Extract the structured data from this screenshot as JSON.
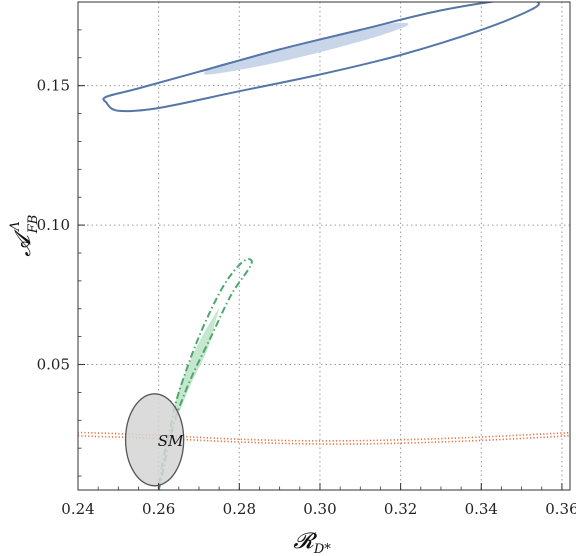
{
  "chart_data": {
    "type": "scatter",
    "xlabel": "𝓡",
    "xlabel_sub": "D*",
    "ylabel": "𝓐",
    "ylabel_sub": "FB",
    "ylabel_sup": "Λ",
    "xlim": [
      0.24,
      0.362
    ],
    "ylim": [
      0.005,
      0.18
    ],
    "x_ticks": [
      0.24,
      0.26,
      0.28,
      0.3,
      0.32,
      0.34,
      0.36
    ],
    "x_tick_labels": [
      "0.24",
      "0.26",
      "0.28",
      "0.30",
      "0.32",
      "0.34",
      "0.36"
    ],
    "y_ticks": [
      0.05,
      0.1,
      0.15
    ],
    "y_tick_labels": [
      "0.05",
      "0.10",
      "0.15"
    ],
    "grid": true,
    "grid_style": "dotted",
    "colors": {
      "blue_line": "#5676a8",
      "blue_fill": "#c9d6ea",
      "green_line": "#4aa86a",
      "green_fill": "#c5e6cf",
      "orange_line": "#e2703e",
      "sm_fill": "#d5d5d5",
      "sm_stroke": "#555555"
    },
    "regions": [
      {
        "color": "blue",
        "line_style": "solid",
        "outer": [
          [
            0.247,
            0.144
          ],
          [
            0.25,
            0.141
          ],
          [
            0.26,
            0.142
          ],
          [
            0.28,
            0.148
          ],
          [
            0.3,
            0.154
          ],
          [
            0.32,
            0.161
          ],
          [
            0.34,
            0.17
          ],
          [
            0.352,
            0.177
          ],
          [
            0.354,
            0.18
          ],
          [
            0.348,
            0.181
          ],
          [
            0.33,
            0.177
          ],
          [
            0.31,
            0.17
          ],
          [
            0.29,
            0.163
          ],
          [
            0.27,
            0.155
          ],
          [
            0.255,
            0.149
          ],
          [
            0.247,
            0.146
          ]
        ],
        "inner": [
          [
            0.272,
            0.154
          ],
          [
            0.285,
            0.157
          ],
          [
            0.3,
            0.162
          ],
          [
            0.315,
            0.168
          ],
          [
            0.322,
            0.172
          ],
          [
            0.316,
            0.172
          ],
          [
            0.3,
            0.167
          ],
          [
            0.285,
            0.161
          ],
          [
            0.274,
            0.157
          ]
        ]
      },
      {
        "color": "green",
        "line_style": "dash-dot",
        "outer": [
          [
            0.26,
            0.005
          ],
          [
            0.262,
            0.018
          ],
          [
            0.264,
            0.03
          ],
          [
            0.268,
            0.045
          ],
          [
            0.273,
            0.06
          ],
          [
            0.278,
            0.075
          ],
          [
            0.283,
            0.086
          ],
          [
            0.281,
            0.087
          ],
          [
            0.276,
            0.078
          ],
          [
            0.27,
            0.06
          ],
          [
            0.265,
            0.04
          ],
          [
            0.263,
            0.028
          ],
          [
            0.261,
            0.015
          ]
        ],
        "inner": [
          [
            0.264,
            0.035
          ],
          [
            0.266,
            0.045
          ],
          [
            0.27,
            0.058
          ],
          [
            0.274,
            0.068
          ],
          [
            0.275,
            0.07
          ],
          [
            0.274,
            0.065
          ],
          [
            0.272,
            0.055
          ],
          [
            0.268,
            0.043
          ],
          [
            0.265,
            0.033
          ]
        ]
      },
      {
        "color": "orange",
        "line_style": "dotted",
        "outer": [
          [
            0.24,
            0.0245
          ],
          [
            0.26,
            0.0235
          ],
          [
            0.28,
            0.0222
          ],
          [
            0.3,
            0.0215
          ],
          [
            0.32,
            0.0218
          ],
          [
            0.34,
            0.0228
          ],
          [
            0.362,
            0.0245
          ],
          [
            0.362,
            0.0255
          ],
          [
            0.34,
            0.024
          ],
          [
            0.32,
            0.023
          ],
          [
            0.3,
            0.0226
          ],
          [
            0.28,
            0.0232
          ],
          [
            0.26,
            0.0246
          ],
          [
            0.24,
            0.0256
          ]
        ]
      }
    ],
    "sm_point": {
      "x": 0.259,
      "y": 0.023,
      "rx": 0.0072,
      "ry": 0.0165,
      "label": "SM"
    }
  }
}
